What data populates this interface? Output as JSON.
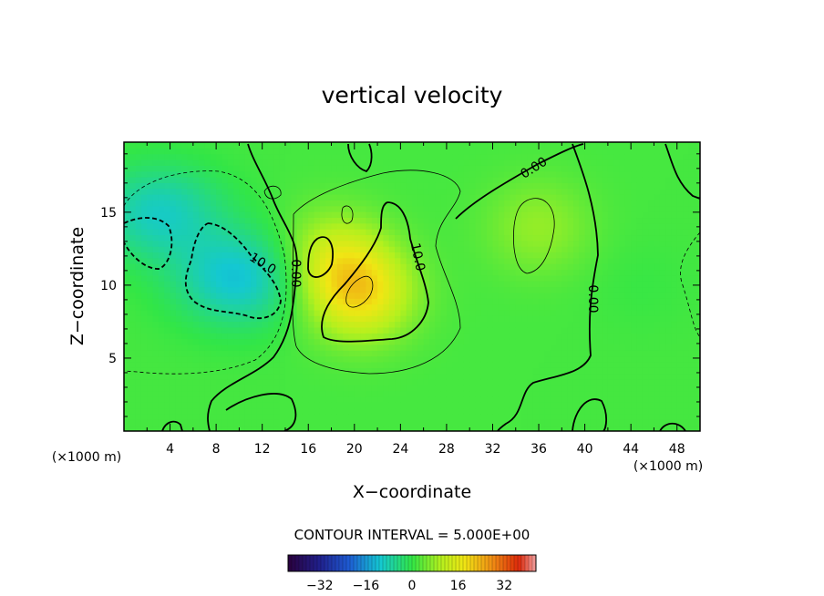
{
  "chart_data": {
    "type": "heatmap",
    "title": "vertical velocity",
    "xlabel": "X−coordinate",
    "ylabel": "Z−coordinate",
    "xunit_left": "(×1000 m)",
    "xunit_right": "(×1000 m)",
    "xlim": [
      0,
      50
    ],
    "ylim": [
      0,
      19.8
    ],
    "xticks": [
      "4",
      "8",
      "12",
      "16",
      "20",
      "24",
      "28",
      "32",
      "36",
      "40",
      "44",
      "48"
    ],
    "yticks": [
      "5",
      "10",
      "15"
    ],
    "contour_interval_text": "CONTOUR INTERVAL = 5.000E+00",
    "contour_labels": [
      "10.0",
      "0.00",
      "10.0",
      "0.00",
      "0.00"
    ],
    "colorbar": {
      "min": -43,
      "max": 43,
      "ticks": [
        "−32",
        "−16",
        "0",
        "16",
        "32"
      ],
      "colormap": "rainbow"
    },
    "features": [
      {
        "kind": "min",
        "x": 10,
        "z": 10.5,
        "value": -13
      },
      {
        "kind": "min",
        "x": 3,
        "z": 15,
        "value": -11
      },
      {
        "kind": "max",
        "x": 20.5,
        "z": 9.5,
        "value": 17
      },
      {
        "kind": "max",
        "x": 18,
        "z": 12,
        "value": 10
      },
      {
        "kind": "max",
        "x": 36,
        "z": 14,
        "value": 6
      },
      {
        "kind": "max",
        "x": 45,
        "z": 10,
        "value": -1
      }
    ]
  }
}
